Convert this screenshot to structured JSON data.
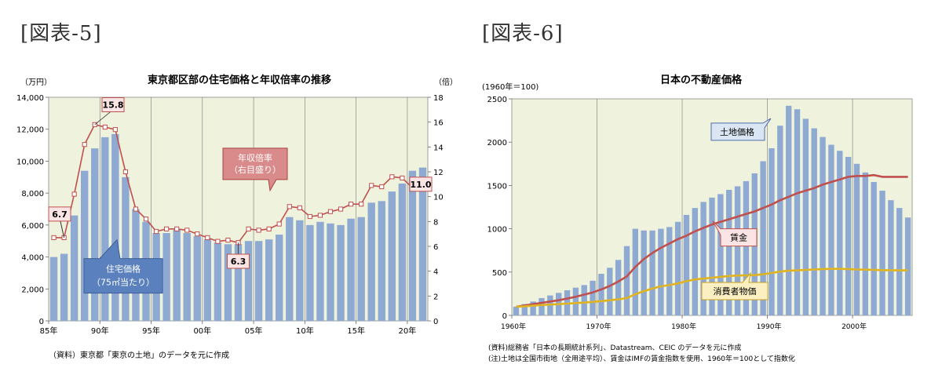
{
  "figures": [
    {
      "label": "[図表-5]",
      "title": "東京都区部の住宅価格と年収倍率の推移",
      "left_unit": "（万円）",
      "right_unit": "（倍）",
      "source": "（資料）東京都「東京の土地」のデータを元に作成",
      "callouts": {
        "ratio_label_line1": "年収倍率",
        "ratio_label_line2": "（右目盛り）",
        "price_label_line1": "住宅価格",
        "price_label_line2": "（75㎡当たり）",
        "v_start": "6.7",
        "v_peak": "15.8",
        "v_low": "6.3",
        "v_end": "11.0"
      }
    },
    {
      "label": "[図表-6]",
      "title": "日本の不動産価格",
      "left_unit": "(1960年＝100)",
      "source_line1": "(資料)総務省「日本の長期統計系列」、Datastream、CEIC のデータを元に作成",
      "source_line2": "(注)土地は全国市街地（全用途平均）、賃金はIMFの賃金指数を使用、1960年＝100として指数化",
      "callouts": {
        "land": "土地価格",
        "wage": "賃金",
        "cpi": "消費者物価"
      }
    }
  ],
  "chart_data": [
    {
      "type": "bar",
      "title": "東京都区部の住宅価格と年収倍率の推移",
      "xlabel": "",
      "ylabel": "（万円）",
      "y2label": "（倍）",
      "ylim": [
        0,
        14000
      ],
      "y2lim": [
        0,
        18
      ],
      "yticks": [
        "0",
        "2,000",
        "4,000",
        "6,000",
        "8,000",
        "10,000",
        "12,000",
        "14,000"
      ],
      "y2ticks": [
        "0",
        "2",
        "4",
        "6",
        "8",
        "10",
        "12",
        "14",
        "16",
        "18"
      ],
      "xticks": [
        "85年",
        "90年",
        "95年",
        "00年",
        "05年",
        "10年",
        "15年",
        "20年"
      ],
      "categories": [
        "1985",
        "1986",
        "1987",
        "1988",
        "1989",
        "1990",
        "1991",
        "1992",
        "1993",
        "1994",
        "1995",
        "1996",
        "1997",
        "1998",
        "1999",
        "2000",
        "2001",
        "2002",
        "2003",
        "2004",
        "2005",
        "2006",
        "2007",
        "2008",
        "2009",
        "2010",
        "2011",
        "2012",
        "2013",
        "2014",
        "2015",
        "2016",
        "2017",
        "2018",
        "2019",
        "2020",
        "2021"
      ],
      "grid": true,
      "plot_bg": "#eff2dd",
      "series": [
        {
          "name": "住宅価格",
          "axis": "left",
          "chart": "bar",
          "color": "#8eaad2",
          "values": [
            4000,
            4200,
            6600,
            9400,
            10800,
            11500,
            11700,
            9000,
            7000,
            6200,
            5500,
            5500,
            5700,
            5500,
            5300,
            5100,
            4900,
            4800,
            4800,
            5000,
            5000,
            5100,
            5400,
            6500,
            6300,
            6000,
            6200,
            6100,
            6000,
            6400,
            6500,
            7400,
            7500,
            8100,
            8600,
            9400,
            9600
          ]
        },
        {
          "name": "年収倍率",
          "axis": "right",
          "chart": "line",
          "color": "#c0504d",
          "values": [
            6.7,
            6.7,
            10.2,
            14.2,
            15.8,
            15.6,
            15.4,
            12.0,
            9.0,
            8.2,
            7.2,
            7.4,
            7.4,
            7.3,
            7.0,
            6.7,
            6.4,
            6.5,
            6.3,
            7.4,
            7.3,
            7.4,
            7.8,
            9.2,
            9.1,
            8.4,
            8.5,
            8.8,
            9.0,
            9.4,
            9.4,
            10.9,
            10.8,
            11.6,
            11.5,
            10.7,
            11.0
          ]
        }
      ]
    },
    {
      "type": "bar",
      "title": "日本の不動産価格",
      "xlabel": "",
      "ylabel": "(1960年＝100)",
      "ylim": [
        0,
        2500
      ],
      "yticks": [
        "0",
        "500",
        "1000",
        "1500",
        "2000",
        "2500"
      ],
      "xticks": [
        "1960年",
        "1970年",
        "1980年",
        "1990年",
        "2000年"
      ],
      "x_start_year": 1960,
      "grid": true,
      "plot_bg": "#eff2dd",
      "series": [
        {
          "name": "土地価格",
          "chart": "bar",
          "color": "#8eaad2",
          "values": [
            100,
            130,
            160,
            200,
            230,
            260,
            290,
            320,
            350,
            400,
            480,
            550,
            640,
            800,
            1000,
            980,
            980,
            1000,
            1020,
            1080,
            1160,
            1240,
            1310,
            1360,
            1400,
            1450,
            1490,
            1550,
            1640,
            1780,
            1930,
            2190,
            2420,
            2380,
            2270,
            2160,
            2060,
            1970,
            1900,
            1830,
            1750,
            1650,
            1540,
            1440,
            1330,
            1240,
            1130
          ]
        },
        {
          "name": "賃金",
          "chart": "line",
          "color": "#c0504d",
          "values": [
            100,
            115,
            130,
            145,
            160,
            175,
            195,
            215,
            240,
            265,
            300,
            340,
            390,
            450,
            560,
            650,
            720,
            780,
            830,
            880,
            920,
            970,
            1010,
            1050,
            1080,
            1110,
            1140,
            1170,
            1200,
            1240,
            1280,
            1330,
            1370,
            1410,
            1440,
            1470,
            1510,
            1540,
            1570,
            1600,
            1610,
            1610,
            1620,
            1600,
            1600,
            1600,
            1600
          ]
        },
        {
          "name": "消費者物価",
          "chart": "line",
          "color": "#e0b320",
          "values": [
            100,
            105,
            112,
            120,
            125,
            130,
            136,
            142,
            148,
            156,
            165,
            175,
            185,
            200,
            245,
            280,
            310,
            335,
            350,
            370,
            395,
            415,
            425,
            435,
            445,
            455,
            460,
            462,
            465,
            475,
            490,
            505,
            515,
            520,
            525,
            530,
            535,
            537,
            537,
            535,
            530,
            528,
            525,
            522,
            522,
            520,
            520
          ]
        }
      ]
    }
  ]
}
